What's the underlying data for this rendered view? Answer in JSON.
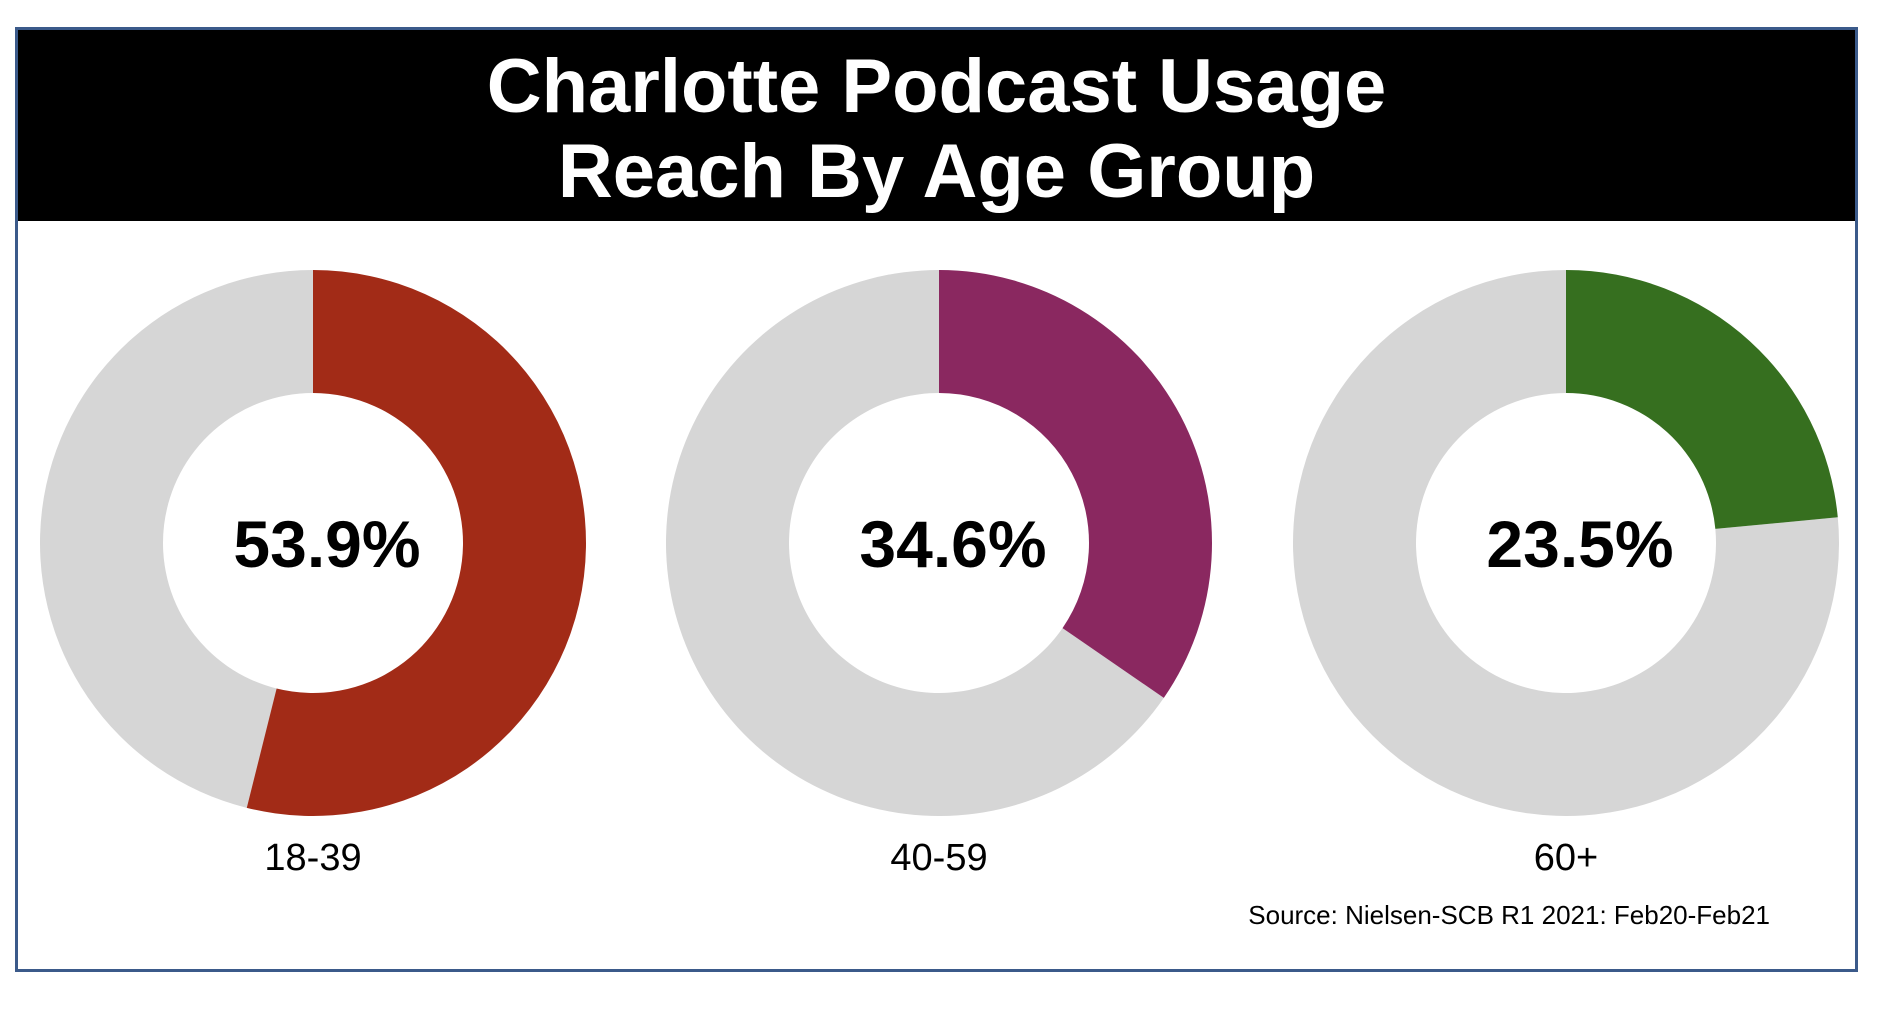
{
  "header": {
    "title_line1": "Charlotte Podcast Usage",
    "title_line2": "Reach By Age Group"
  },
  "source": "Source: Nielsen-SCB R1 2021: Feb20-Feb21",
  "chart_data": {
    "type": "pie",
    "title": "Charlotte Podcast Usage Reach By Age Group",
    "remainder_color": "#d6d6d6",
    "categories": [
      "18-39",
      "40-59",
      "60+"
    ],
    "values": [
      53.9,
      34.6,
      23.5
    ],
    "labels": [
      "53.9%",
      "34.6%",
      "23.5%"
    ],
    "colors": [
      "#a22b17",
      "#8a2860",
      "#366f1f"
    ],
    "unit": "%",
    "max": 100
  }
}
